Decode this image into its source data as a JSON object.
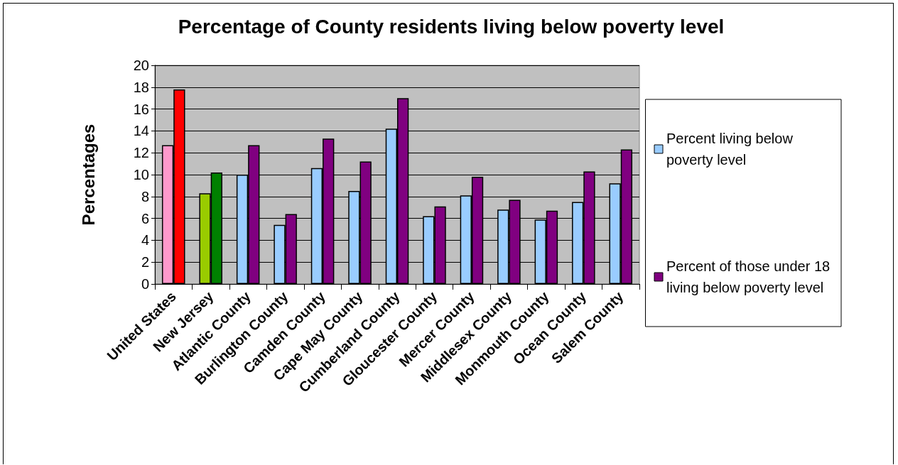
{
  "chart_data": {
    "type": "bar",
    "title": "Percentage of County residents living below poverty level",
    "ylabel": "Percentages",
    "categories": [
      "United States",
      "New Jersey",
      "Atlantic County",
      "Burlington County",
      "Camden County",
      "Cape May County",
      "Cumberland County",
      "Gloucester County",
      "Mercer County",
      "Middlesex County",
      "Monmouth County",
      "Ocean County",
      "Salem County"
    ],
    "series": [
      {
        "name": "Percent living below poverty level",
        "color": "#99ccff",
        "colors": [
          "#ff99cc",
          "#99cc00",
          "#99ccff",
          "#99ccff",
          "#99ccff",
          "#99ccff",
          "#99ccff",
          "#99ccff",
          "#99ccff",
          "#99ccff",
          "#99ccff",
          "#99ccff",
          "#99ccff"
        ],
        "values": [
          12.7,
          8.3,
          10.0,
          5.4,
          10.6,
          8.5,
          14.2,
          6.2,
          8.1,
          6.8,
          5.9,
          7.5,
          9.2
        ]
      },
      {
        "name": "Percent of those under 18 living below poverty level",
        "color": "#800080",
        "colors": [
          "#ff0000",
          "#008000",
          "#800080",
          "#800080",
          "#800080",
          "#800080",
          "#800080",
          "#800080",
          "#800080",
          "#800080",
          "#800080",
          "#800080",
          "#800080"
        ],
        "values": [
          17.8,
          10.2,
          12.7,
          6.4,
          13.3,
          11.2,
          17.0,
          7.1,
          9.8,
          7.7,
          6.7,
          10.3,
          12.3
        ]
      }
    ],
    "ylim": [
      0,
      20
    ],
    "yticks": [
      0,
      2,
      4,
      6,
      8,
      10,
      12,
      14,
      16,
      18,
      20
    ],
    "grid": "y",
    "legend": "right"
  }
}
